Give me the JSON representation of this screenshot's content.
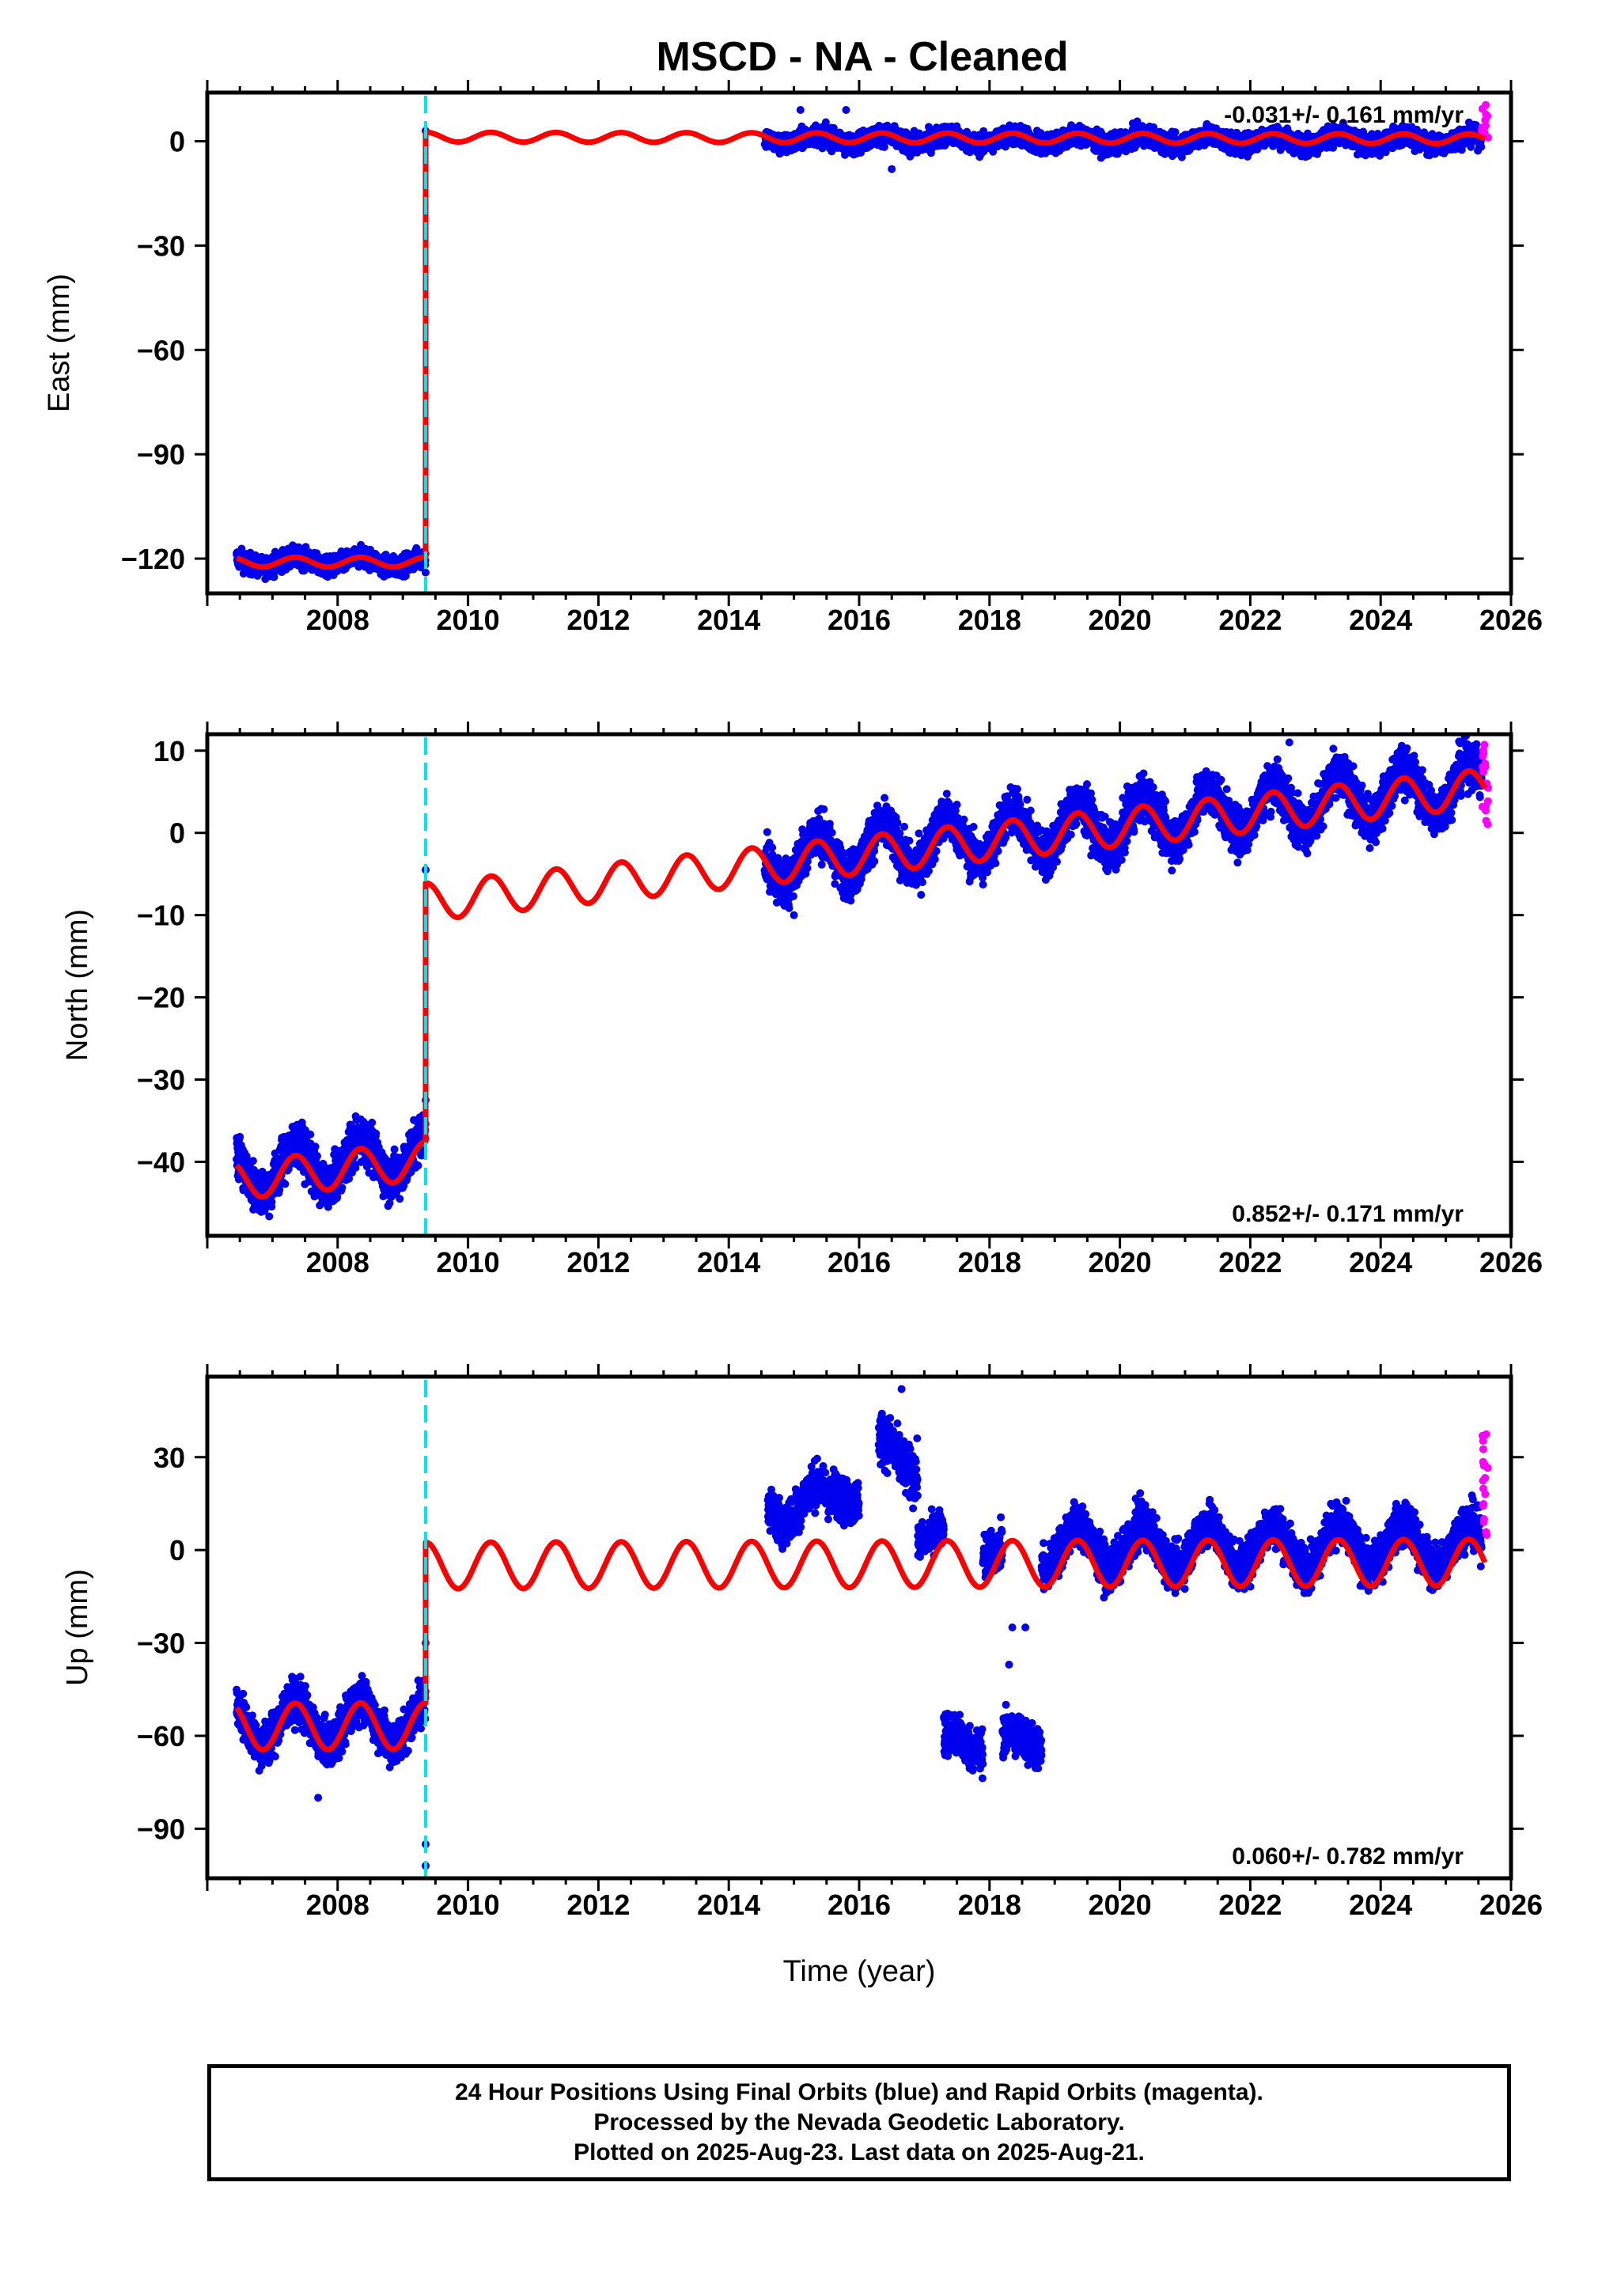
{
  "title": "MSCD  - NA - Cleaned",
  "colors": {
    "final": "#0000ee",
    "rapid": "#ff00ff",
    "model": "#ff0000",
    "event": "#00e5ee"
  },
  "footer": {
    "line1": "24 Hour Positions Using Final Orbits (blue) and Rapid Orbits (magenta).",
    "line2": "Processed by the Nevada Geodetic Laboratory.",
    "line3": "Plotted on 2025-Aug-23. Last data on 2025-Aug-21."
  },
  "chart_data": [
    {
      "type": "scatter",
      "ylabel": "East (mm)",
      "xlabel": "",
      "xlim": [
        2006.0,
        2026.0
      ],
      "ylim": [
        -130,
        14
      ],
      "yticks": [
        0,
        -30,
        -60,
        -90,
        -120
      ],
      "xticks": [
        2008,
        2010,
        2012,
        2014,
        2016,
        2018,
        2020,
        2022,
        2024,
        2026
      ],
      "rate": "-0.031+/- 0.161 mm/yr",
      "rate_position": "top-right",
      "event_line_x": 2009.35,
      "segments": [
        {
          "start": 2006.45,
          "end": 2009.35,
          "offset": -121,
          "slope": 0.0,
          "amp": 1.4,
          "scatter": 2.0
        },
        {
          "start": 2014.55,
          "end": 2025.55,
          "offset": 0.5,
          "slope": -0.031,
          "amp": 1.4,
          "scatter": 2.0
        }
      ],
      "model_segments": [
        {
          "start": 2006.45,
          "end": 2009.35,
          "offset": -121,
          "slope": 0.0,
          "amp": 1.4
        },
        {
          "start": 2009.35,
          "end": 2025.6,
          "offset": 1.2,
          "slope": -0.031,
          "amp": 1.4
        }
      ],
      "outliers": [
        [
          2015.1,
          9
        ],
        [
          2015.8,
          9
        ],
        [
          2016.5,
          -8
        ],
        [
          2009.35,
          3
        ],
        [
          2009.35,
          -124
        ]
      ],
      "rapid": {
        "start": 2025.55,
        "end": 2025.65,
        "center": 6,
        "spread": 5
      }
    },
    {
      "type": "scatter",
      "ylabel": "North (mm)",
      "xlabel": "",
      "xlim": [
        2006.0,
        2026.0
      ],
      "ylim": [
        -49,
        12
      ],
      "yticks": [
        10,
        0,
        -10,
        -20,
        -30,
        -40
      ],
      "xticks": [
        2008,
        2010,
        2012,
        2014,
        2016,
        2018,
        2020,
        2022,
        2024,
        2026
      ],
      "rate": "0.852+/- 0.171 mm/yr",
      "rate_position": "bottom-right",
      "event_line_x": 2009.35,
      "segments": [
        {
          "start": 2006.45,
          "end": 2009.35,
          "offset": -41.5,
          "slope": 0.852,
          "amp": 2.6,
          "scatter": 2.0
        },
        {
          "start": 2014.55,
          "end": 2025.55,
          "offset": -3.5,
          "slope": 0.852,
          "amp": 2.8,
          "scatter": 2.0
        }
      ],
      "model_segments": [
        {
          "start": 2006.45,
          "end": 2009.35,
          "offset": -42.3,
          "slope": 0.852,
          "amp": 2.3
        },
        {
          "start": 2009.35,
          "end": 2025.6,
          "offset": -8.4,
          "slope": 0.852,
          "amp": 2.3
        }
      ],
      "outliers": [
        [
          2009.35,
          -4.5
        ],
        [
          2009.35,
          -32.5
        ],
        [
          2015.0,
          -10
        ],
        [
          2022.6,
          11
        ]
      ],
      "rapid": {
        "start": 2025.55,
        "end": 2025.65,
        "center": 6,
        "spread": 5
      }
    },
    {
      "type": "scatter",
      "ylabel": "Up (mm)",
      "xlabel": "Time (year)",
      "xlim": [
        2006.0,
        2026.0
      ],
      "ylim": [
        -106,
        56
      ],
      "yticks": [
        30,
        0,
        -30,
        -60,
        -90
      ],
      "xticks": [
        2008,
        2010,
        2012,
        2014,
        2016,
        2018,
        2020,
        2022,
        2024,
        2026
      ],
      "rate": "0.060+/- 0.782 mm/yr",
      "rate_position": "bottom-right",
      "event_line_x": 2009.35,
      "segments": [
        {
          "start": 2006.45,
          "end": 2009.35,
          "offset": -56,
          "slope": 0.06,
          "amp": 7,
          "scatter": 5
        },
        {
          "start": 2014.6,
          "end": 2015.6,
          "offset": 15,
          "slope": 0.0,
          "amp": 6,
          "scatter": 5
        },
        {
          "start": 2015.6,
          "end": 2016.0,
          "offset": 20,
          "slope": 0.0,
          "amp": 5,
          "scatter": 5
        },
        {
          "start": 2016.3,
          "end": 2016.9,
          "offset": 30,
          "slope": 0.0,
          "amp": 6,
          "scatter": 6
        },
        {
          "start": 2016.9,
          "end": 2017.3,
          "offset": 5,
          "slope": 0.0,
          "amp": 3,
          "scatter": 4
        },
        {
          "start": 2017.3,
          "end": 2017.9,
          "offset": -62,
          "slope": 0.0,
          "amp": 3,
          "scatter": 5
        },
        {
          "start": 2018.2,
          "end": 2018.8,
          "offset": -62,
          "slope": 0.0,
          "amp": 3,
          "scatter": 5
        },
        {
          "start": 2017.9,
          "end": 2018.2,
          "offset": 0,
          "slope": 0.0,
          "amp": 3,
          "scatter": 5
        },
        {
          "start": 2018.8,
          "end": 2025.55,
          "offset": 1,
          "slope": 0.06,
          "amp": 7,
          "scatter": 5
        }
      ],
      "model_segments": [
        {
          "start": 2006.45,
          "end": 2009.35,
          "offset": -57,
          "slope": 0.06,
          "amp": 7.5
        },
        {
          "start": 2009.35,
          "end": 2025.6,
          "offset": -5,
          "slope": 0.06,
          "amp": 7.5
        }
      ],
      "outliers": [
        [
          2016.65,
          52
        ],
        [
          2009.35,
          -102
        ],
        [
          2009.35,
          -95
        ],
        [
          2009.35,
          -30
        ],
        [
          2018.35,
          -25
        ],
        [
          2018.55,
          -25
        ],
        [
          2007.7,
          -80
        ],
        [
          2018.3,
          -37
        ]
      ],
      "rapid": {
        "start": 2025.55,
        "end": 2025.65,
        "center": 22,
        "spread": 18
      }
    }
  ]
}
